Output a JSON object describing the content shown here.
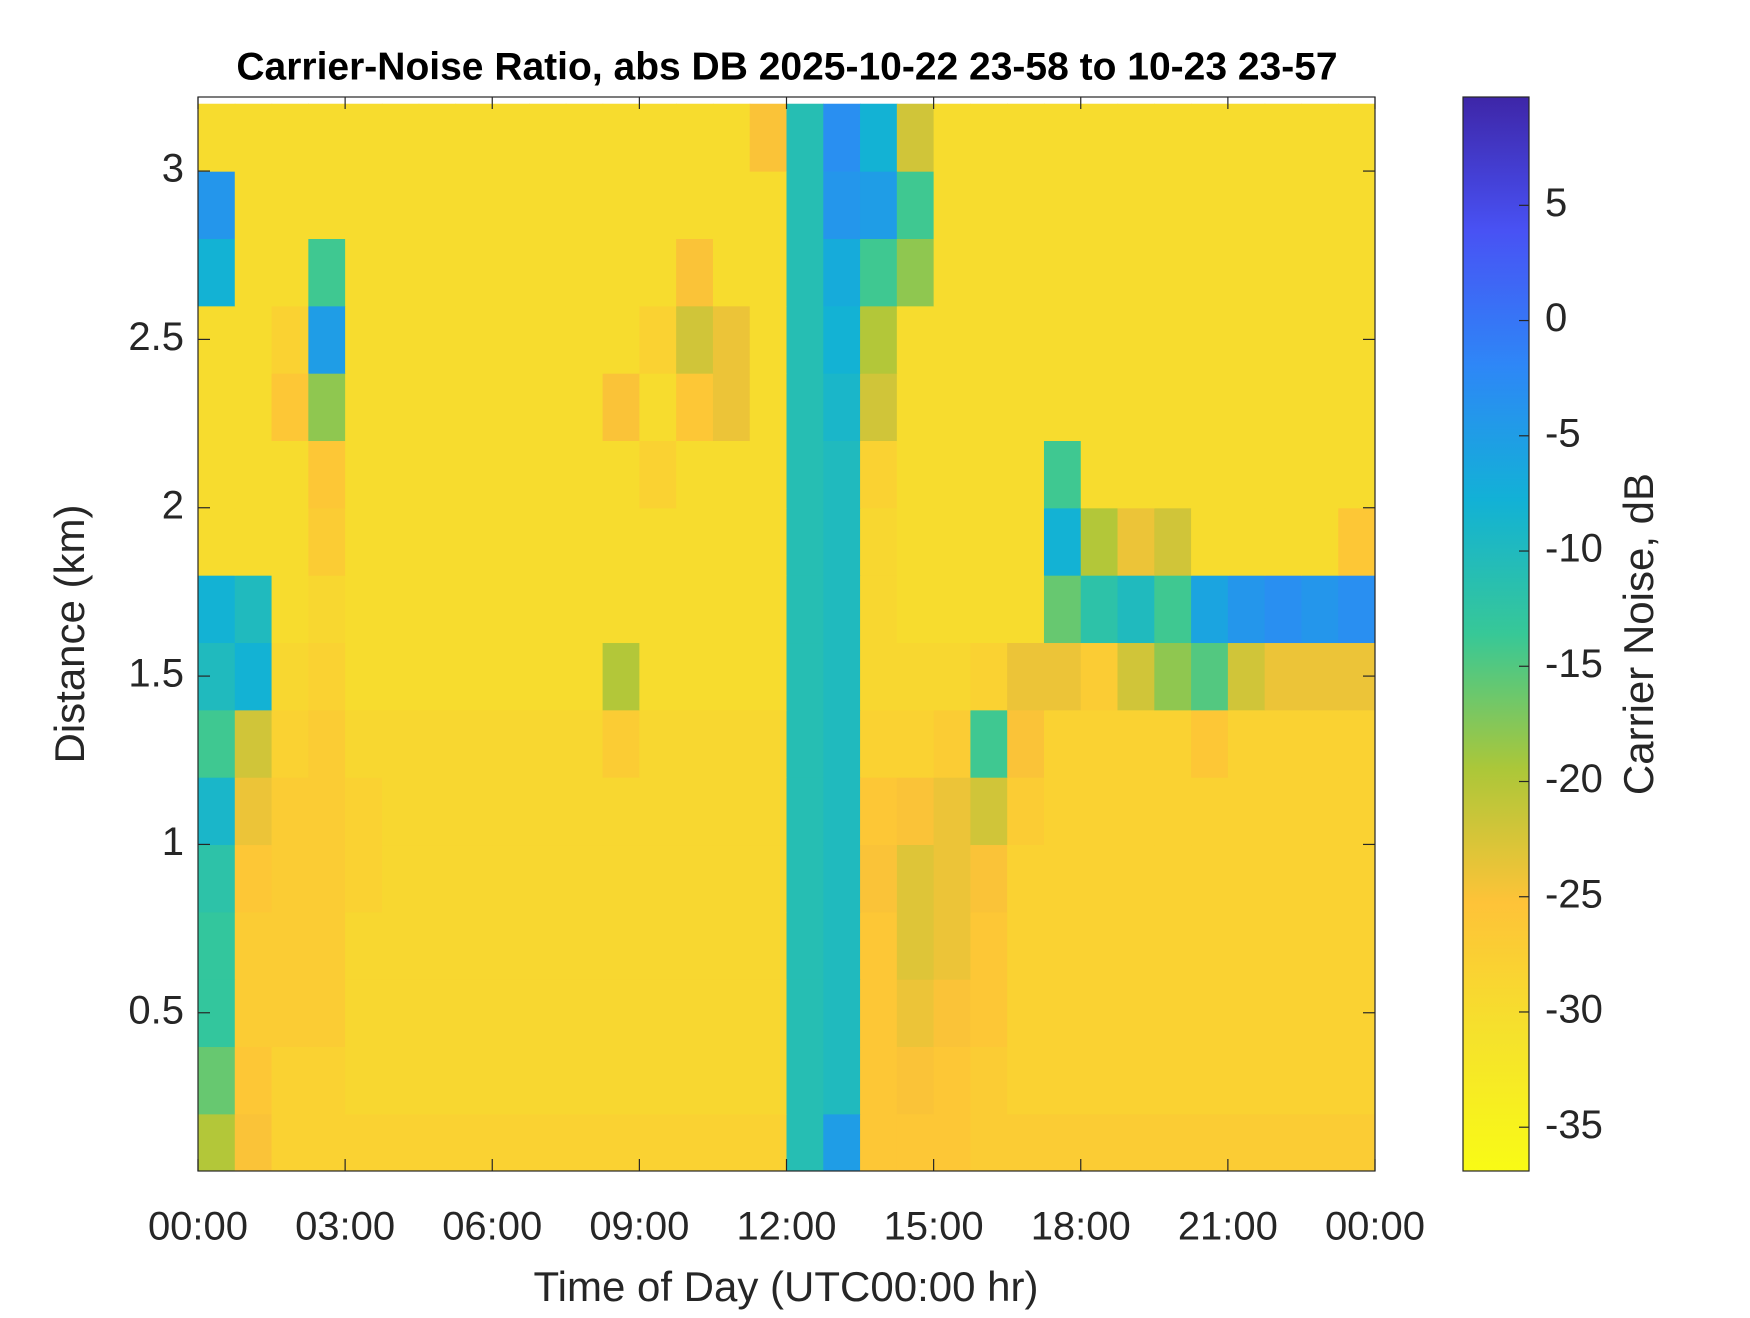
{
  "chart_data": {
    "type": "heatmap",
    "title": "Carrier-Noise Ratio, abs DB 2025-10-22 23-58 to 10-23 23-57",
    "x_label": "Time of Day (UTC00:00 hr)",
    "y_label": "Distance (km)",
    "xlim": [
      0,
      24
    ],
    "ylim": [
      0.03,
      3.22
    ],
    "xticks": [
      {
        "value": 0,
        "label": "00:00"
      },
      {
        "value": 3,
        "label": "03:00"
      },
      {
        "value": 6,
        "label": "06:00"
      },
      {
        "value": 9,
        "label": "09:00"
      },
      {
        "value": 12,
        "label": "12:00"
      },
      {
        "value": 15,
        "label": "15:00"
      },
      {
        "value": 18,
        "label": "18:00"
      },
      {
        "value": 21,
        "label": "21:00"
      },
      {
        "value": 24,
        "label": "00:00"
      }
    ],
    "yticks": [
      0.5,
      1,
      1.5,
      2,
      2.5,
      3
    ],
    "x_edges": [
      0,
      0.75,
      1.5,
      2.25,
      3,
      3.75,
      4.5,
      5.25,
      6,
      6.75,
      7.5,
      8.25,
      9,
      9.75,
      10.5,
      11.25,
      12,
      12.75,
      13.5,
      14.25,
      15,
      15.75,
      16.5,
      17.25,
      18,
      18.75,
      19.5,
      20.25,
      21,
      21.75,
      22.5,
      23.25,
      24
    ],
    "y_edges": [
      0,
      0.2,
      0.4,
      0.6,
      0.8,
      1.0,
      1.2,
      1.4,
      1.6,
      1.8,
      2.0,
      2.2,
      2.4,
      2.6,
      2.8,
      3.0,
      3.2
    ],
    "z": [
      [
        -20,
        -25,
        -28,
        -28,
        -28,
        -28,
        -28,
        -28,
        -28,
        -28,
        -28,
        -28,
        -28,
        -28,
        -28,
        -28,
        -11,
        -5,
        -26,
        -26,
        -26,
        -27,
        -27,
        -27,
        -27,
        -27,
        -27,
        -27,
        -27,
        -27,
        -27,
        -27
      ],
      [
        -16,
        -26,
        -28,
        -28,
        -29,
        -29,
        -29,
        -29,
        -29,
        -29,
        -29,
        -29,
        -29,
        -29,
        -29,
        -29,
        -11,
        -10,
        -26,
        -25,
        -26,
        -27,
        -28,
        -28,
        -28,
        -28,
        -28,
        -28,
        -28,
        -28,
        -28,
        -28
      ],
      [
        -13,
        -27,
        -27,
        -27,
        -29,
        -29,
        -29,
        -29,
        -29,
        -29,
        -29,
        -29,
        -29,
        -29,
        -29,
        -29,
        -11,
        -10,
        -26,
        -24,
        -25,
        -26,
        -28,
        -28,
        -28,
        -28,
        -28,
        -28,
        -28,
        -28,
        -28,
        -28
      ],
      [
        -13,
        -27,
        -27,
        -27,
        -29,
        -29,
        -29,
        -29,
        -29,
        -29,
        -29,
        -29,
        -29,
        -29,
        -29,
        -29,
        -11,
        -10,
        -26,
        -23,
        -24,
        -26,
        -28,
        -28,
        -28,
        -28,
        -28,
        -28,
        -28,
        -28,
        -28,
        -28
      ],
      [
        -12,
        -26,
        -27,
        -27,
        -28,
        -29,
        -29,
        -29,
        -29,
        -29,
        -29,
        -29,
        -29,
        -29,
        -29,
        -29,
        -11,
        -10,
        -25,
        -23,
        -24,
        -25,
        -28,
        -28,
        -28,
        -28,
        -28,
        -28,
        -28,
        -28,
        -28,
        -28
      ],
      [
        -9,
        -24,
        -27,
        -27,
        -28,
        -29,
        -29,
        -29,
        -29,
        -29,
        -29,
        -29,
        -29,
        -29,
        -29,
        -29,
        -11,
        -10,
        -26,
        -25,
        -24,
        -22,
        -27,
        -28,
        -28,
        -28,
        -28,
        -28,
        -28,
        -28,
        -28,
        -28
      ],
      [
        -14,
        -22,
        -28,
        -27,
        -29,
        -29,
        -29,
        -29,
        -29,
        -29,
        -29,
        -27,
        -29,
        -29,
        -29,
        -29,
        -11,
        -10,
        -28,
        -28,
        -27,
        -14,
        -25,
        -28,
        -28,
        -28,
        -28,
        -26,
        -28,
        -28,
        -28,
        -28
      ],
      [
        -10,
        -8,
        -29,
        -28,
        -30,
        -30,
        -30,
        -30,
        -30,
        -30,
        -30,
        -20,
        -30,
        -30,
        -30,
        -30,
        -11,
        -10,
        -29,
        -29,
        -29,
        -28,
        -24,
        -24,
        -27,
        -22,
        -18,
        -15,
        -22,
        -24,
        -24,
        -24
      ],
      [
        -8,
        -10,
        -30,
        -29,
        -30,
        -30,
        -30,
        -30,
        -30,
        -30,
        -30,
        -30,
        -30,
        -30,
        -30,
        -30,
        -11,
        -10,
        -29,
        -30,
        -30,
        -30,
        -30,
        -16,
        -12,
        -10,
        -14,
        -6,
        -4,
        -3,
        -4,
        -3
      ],
      [
        -30,
        -30,
        -30,
        -27,
        -30,
        -30,
        -30,
        -30,
        -30,
        -30,
        -30,
        -30,
        -30,
        -30,
        -30,
        -30,
        -11,
        -10,
        -29,
        -30,
        -30,
        -30,
        -30,
        -8,
        -20,
        -24,
        -22,
        -30,
        -30,
        -30,
        -30,
        -26
      ],
      [
        -30,
        -30,
        -30,
        -26,
        -30,
        -30,
        -30,
        -30,
        -30,
        -30,
        -30,
        -30,
        -28,
        -30,
        -30,
        -30,
        -11,
        -10,
        -28,
        -30,
        -30,
        -30,
        -30,
        -14,
        -30,
        -30,
        -30,
        -30,
        -30,
        -30,
        -30,
        -30
      ],
      [
        -30,
        -30,
        -26,
        -18,
        -30,
        -30,
        -30,
        -30,
        -30,
        -30,
        -30,
        -25,
        -30,
        -26,
        -24,
        -30,
        -11,
        -9,
        -22,
        -30,
        -30,
        -30,
        -30,
        -30,
        -30,
        -30,
        -30,
        -30,
        -30,
        -30,
        -30,
        -30
      ],
      [
        -30,
        -30,
        -28,
        -5,
        -30,
        -30,
        -30,
        -30,
        -30,
        -30,
        -30,
        -30,
        -28,
        -22,
        -24,
        -30,
        -11,
        -8,
        -20,
        -30,
        -30,
        -30,
        -30,
        -30,
        -30,
        -30,
        -30,
        -30,
        -30,
        -30,
        -30,
        -30
      ],
      [
        -8,
        -30,
        -30,
        -14,
        -30,
        -30,
        -30,
        -30,
        -30,
        -30,
        -30,
        -30,
        -30,
        -25,
        -30,
        -30,
        -11,
        -7,
        -14,
        -18,
        -30,
        -30,
        -30,
        -30,
        -30,
        -30,
        -30,
        -30,
        -30,
        -30,
        -30,
        -30
      ],
      [
        -4,
        -30,
        -30,
        -30,
        -30,
        -30,
        -30,
        -30,
        -30,
        -30,
        -30,
        -30,
        -30,
        -30,
        -30,
        -30,
        -11,
        -4,
        -5,
        -14,
        -30,
        -30,
        -30,
        -30,
        -30,
        -30,
        -30,
        -30,
        -30,
        -30,
        -30,
        -30
      ],
      [
        -30,
        -30,
        -30,
        -30,
        -30,
        -30,
        -30,
        -30,
        -30,
        -30,
        -30,
        -30,
        -30,
        -30,
        -30,
        -25,
        -11,
        -3,
        -8,
        -22,
        -30,
        -30,
        -30,
        -30,
        -30,
        -30,
        -30,
        -30,
        -30,
        -30,
        -30,
        -30
      ]
    ],
    "colormap": "parula",
    "colormap_reversed": true,
    "colorbar": {
      "label": "Carrier Noise, dB",
      "lim": [
        -36.9,
        9.7
      ],
      "ticks": [
        -35,
        -30,
        -25,
        -20,
        -15,
        -10,
        -5,
        0,
        5
      ]
    }
  }
}
